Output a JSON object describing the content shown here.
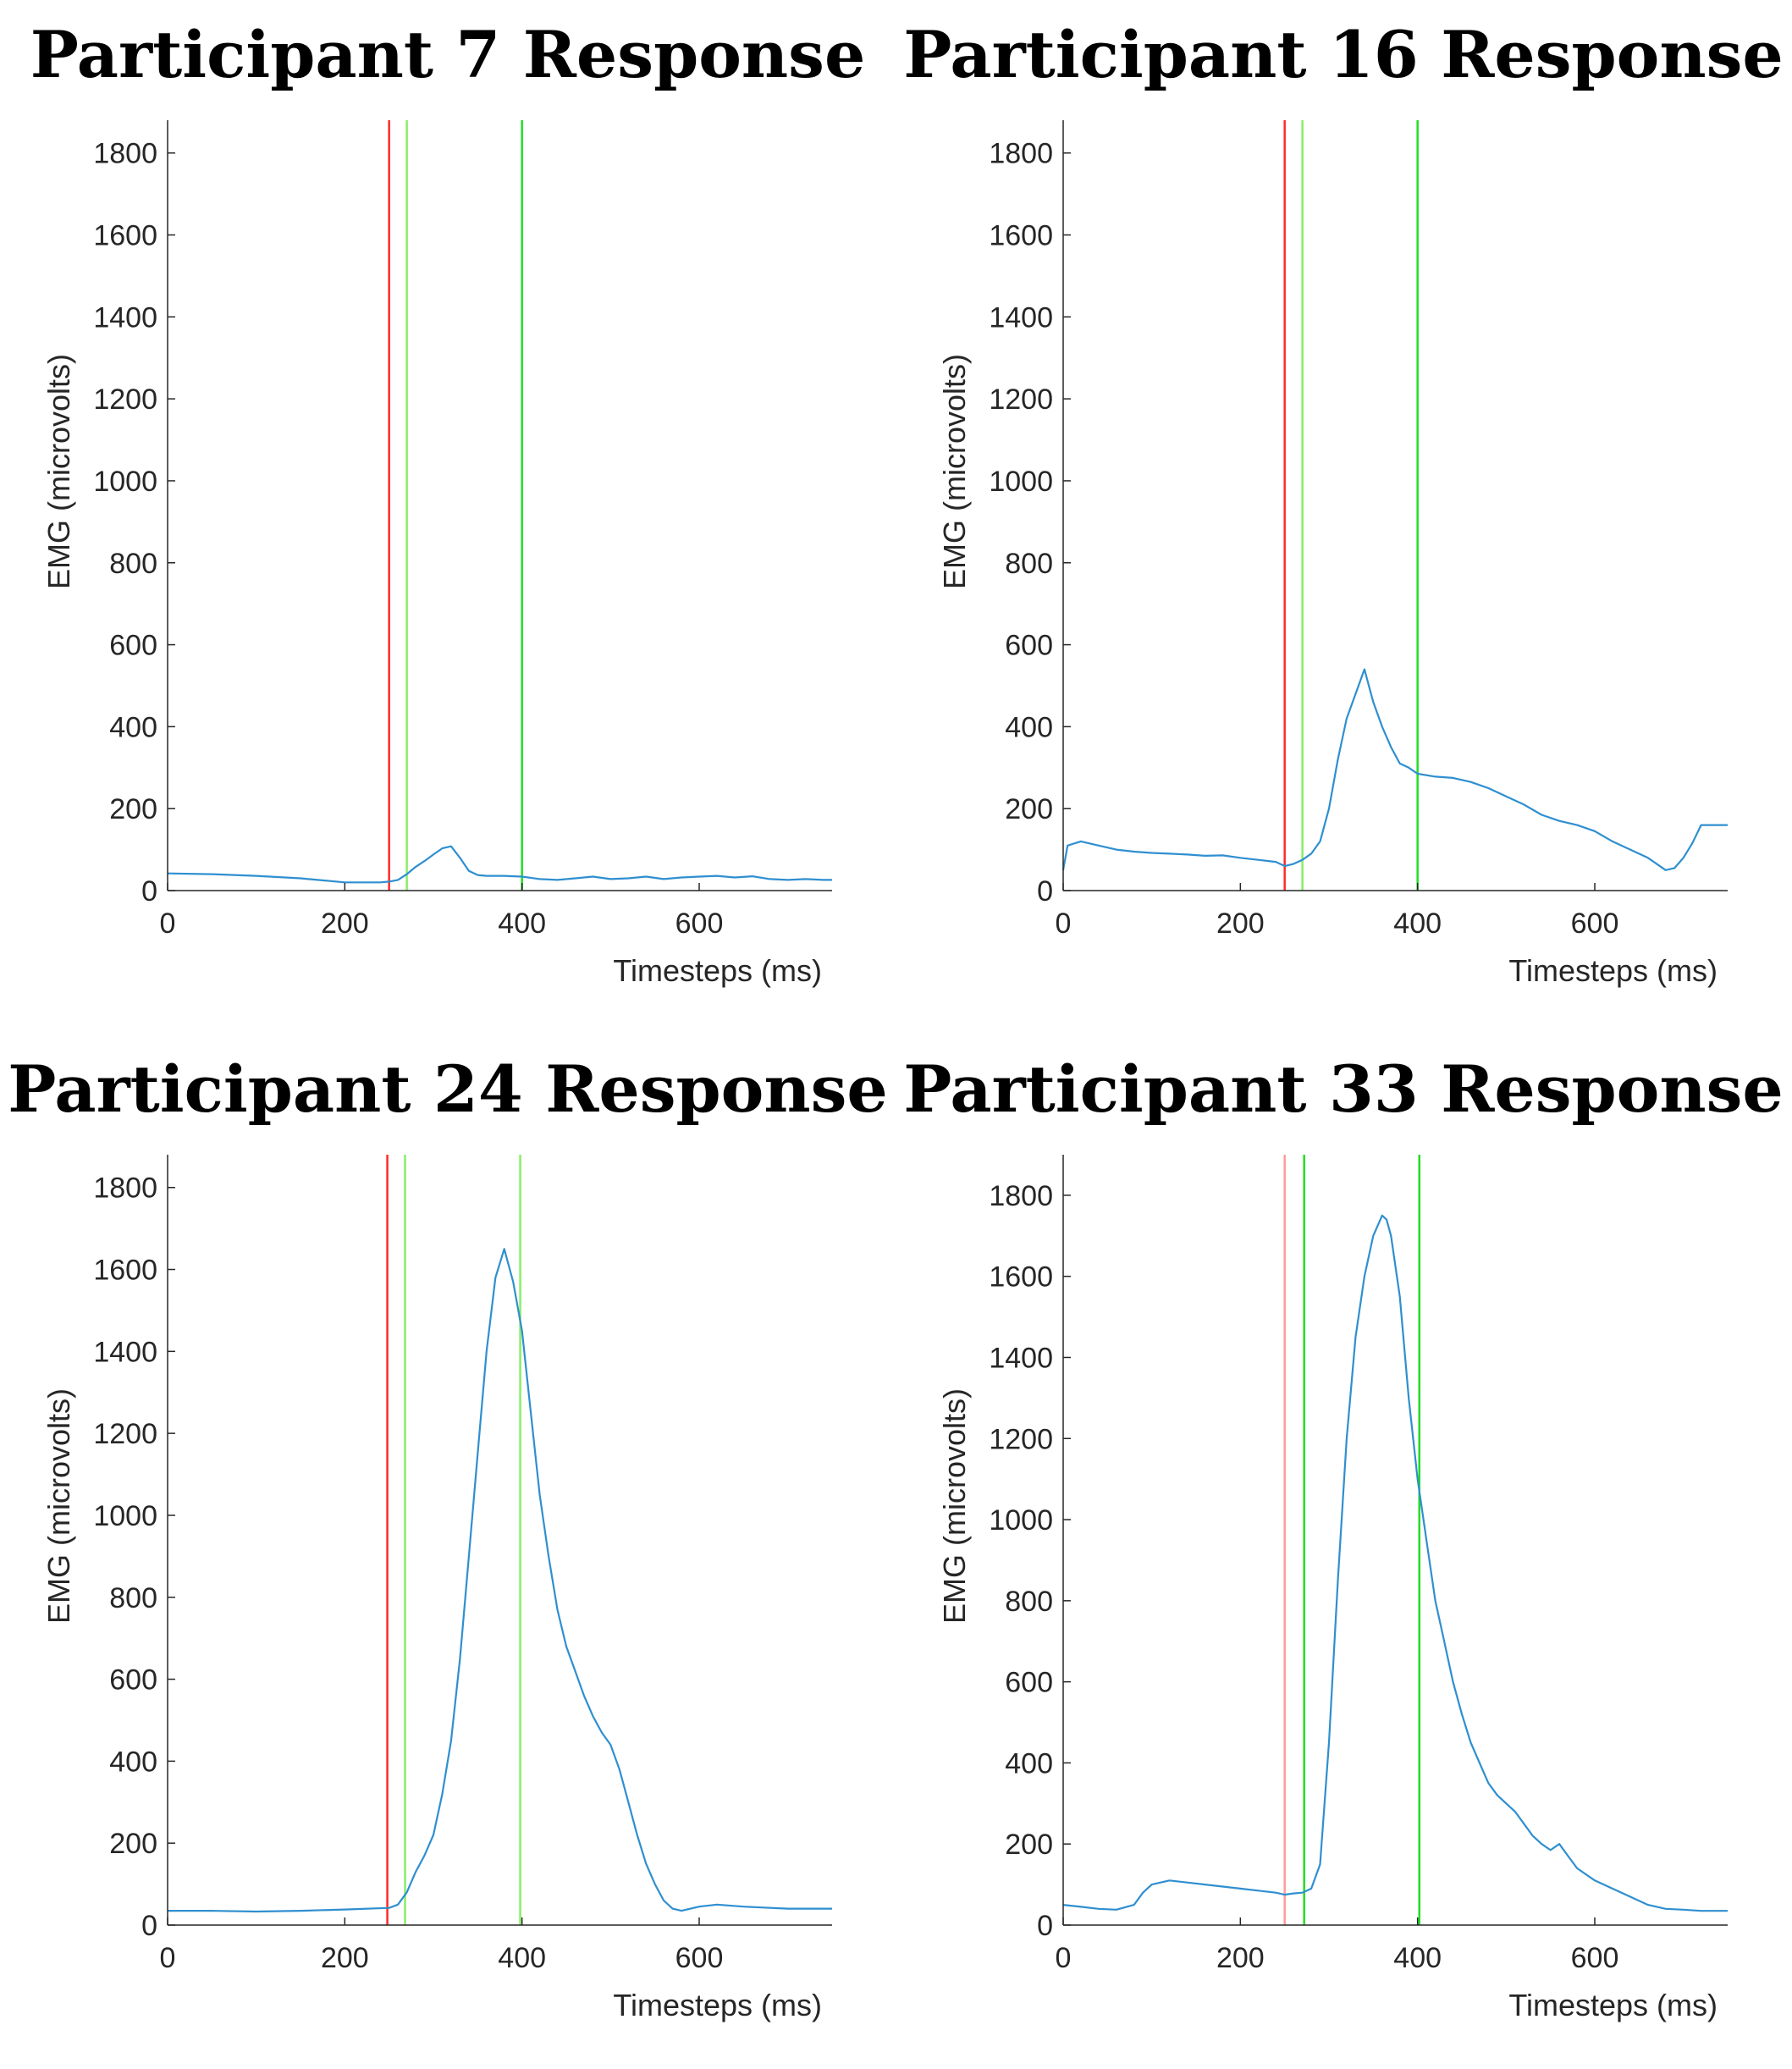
{
  "chart_data": [
    {
      "type": "line",
      "title": "Participant 7 Response",
      "xlabel": "Timesteps (ms)",
      "ylabel": "EMG (microvolts)",
      "xlim": [
        0,
        750
      ],
      "ylim": [
        0,
        1880
      ],
      "xticks": [
        0,
        200,
        400,
        600
      ],
      "yticks": [
        0,
        200,
        400,
        600,
        800,
        1000,
        1200,
        1400,
        1600,
        1800
      ],
      "markers": [
        {
          "x": 250,
          "color": "#ff2a2a"
        },
        {
          "x": 270,
          "color": "#88ee66"
        },
        {
          "x": 400,
          "color": "#22dd22"
        }
      ],
      "series": [
        {
          "name": "EMG",
          "color": "#2f8fd0",
          "x": [
            0,
            50,
            100,
            150,
            200,
            240,
            250,
            260,
            270,
            280,
            290,
            300,
            310,
            320,
            330,
            340,
            350,
            360,
            380,
            400,
            420,
            440,
            460,
            480,
            500,
            520,
            540,
            560,
            580,
            600,
            620,
            640,
            660,
            680,
            700,
            720,
            740,
            750
          ],
          "values": [
            42,
            40,
            36,
            30,
            20,
            20,
            22,
            26,
            40,
            58,
            72,
            88,
            103,
            108,
            80,
            48,
            38,
            36,
            36,
            34,
            28,
            26,
            30,
            34,
            28,
            30,
            34,
            28,
            32,
            34,
            36,
            32,
            35,
            28,
            26,
            28,
            26,
            26
          ]
        }
      ]
    },
    {
      "type": "line",
      "title": "Participant 16 Response",
      "xlabel": "Timesteps (ms)",
      "ylabel": "EMG (microvolts)",
      "xlim": [
        0,
        750
      ],
      "ylim": [
        0,
        1880
      ],
      "xticks": [
        0,
        200,
        400,
        600
      ],
      "yticks": [
        0,
        200,
        400,
        600,
        800,
        1000,
        1200,
        1400,
        1600,
        1800
      ],
      "markers": [
        {
          "x": 250,
          "color": "#ff2a2a"
        },
        {
          "x": 270,
          "color": "#88ee66"
        },
        {
          "x": 400,
          "color": "#22dd22"
        }
      ],
      "series": [
        {
          "name": "EMG",
          "color": "#2f8fd0",
          "x": [
            0,
            5,
            20,
            40,
            60,
            80,
            100,
            120,
            140,
            160,
            180,
            200,
            220,
            240,
            250,
            260,
            270,
            280,
            290,
            300,
            310,
            320,
            330,
            340,
            350,
            360,
            370,
            380,
            390,
            400,
            420,
            440,
            460,
            480,
            500,
            520,
            540,
            560,
            580,
            600,
            620,
            640,
            660,
            680,
            690,
            700,
            710,
            720,
            740,
            750
          ],
          "values": [
            50,
            110,
            120,
            110,
            100,
            95,
            92,
            90,
            88,
            85,
            86,
            80,
            75,
            70,
            60,
            65,
            75,
            90,
            120,
            200,
            320,
            420,
            480,
            540,
            460,
            400,
            350,
            310,
            300,
            285,
            278,
            275,
            265,
            250,
            230,
            210,
            185,
            170,
            160,
            145,
            120,
            100,
            80,
            50,
            55,
            80,
            115,
            160,
            160,
            160
          ]
        }
      ]
    },
    {
      "type": "line",
      "title": "Participant 24 Response",
      "xlabel": "Timesteps (ms)",
      "ylabel": "EMG (microvolts)",
      "xlim": [
        0,
        750
      ],
      "ylim": [
        0,
        1880
      ],
      "xticks": [
        0,
        200,
        400,
        600
      ],
      "yticks": [
        0,
        200,
        400,
        600,
        800,
        1000,
        1200,
        1400,
        1600,
        1800
      ],
      "markers": [
        {
          "x": 248,
          "color": "#ff2a2a"
        },
        {
          "x": 268,
          "color": "#88ee66"
        },
        {
          "x": 398,
          "color": "#88ee66"
        }
      ],
      "series": [
        {
          "name": "EMG",
          "color": "#2f8fd0",
          "x": [
            0,
            50,
            100,
            150,
            200,
            250,
            260,
            270,
            280,
            290,
            300,
            310,
            320,
            330,
            340,
            350,
            360,
            370,
            380,
            390,
            400,
            410,
            420,
            430,
            440,
            450,
            460,
            470,
            480,
            490,
            500,
            510,
            520,
            530,
            540,
            550,
            560,
            570,
            580,
            600,
            620,
            650,
            700,
            750
          ],
          "values": [
            35,
            35,
            33,
            35,
            38,
            42,
            50,
            80,
            130,
            170,
            220,
            320,
            450,
            650,
            900,
            1150,
            1400,
            1580,
            1650,
            1570,
            1450,
            1250,
            1050,
            900,
            770,
            680,
            620,
            560,
            510,
            470,
            440,
            380,
            300,
            220,
            150,
            100,
            60,
            40,
            35,
            45,
            50,
            45,
            40,
            40
          ]
        }
      ]
    },
    {
      "type": "line",
      "title": "Participant 33 Response",
      "xlabel": "Timesteps (ms)",
      "ylabel": "EMG (microvolts)",
      "xlim": [
        0,
        750
      ],
      "ylim": [
        0,
        1900
      ],
      "xticks": [
        0,
        200,
        400,
        600
      ],
      "yticks": [
        0,
        200,
        400,
        600,
        800,
        1000,
        1200,
        1400,
        1600,
        1800
      ],
      "markers": [
        {
          "x": 250,
          "color": "#ff9a9a"
        },
        {
          "x": 272,
          "color": "#22dd22"
        },
        {
          "x": 402,
          "color": "#22dd22"
        }
      ],
      "series": [
        {
          "name": "EMG",
          "color": "#2f8fd0",
          "x": [
            0,
            20,
            40,
            60,
            80,
            90,
            100,
            120,
            140,
            160,
            180,
            200,
            220,
            240,
            250,
            260,
            270,
            280,
            290,
            300,
            310,
            320,
            330,
            340,
            350,
            360,
            365,
            370,
            380,
            390,
            400,
            410,
            420,
            430,
            440,
            450,
            460,
            470,
            480,
            490,
            500,
            510,
            520,
            530,
            540,
            550,
            560,
            570,
            580,
            600,
            620,
            640,
            660,
            680,
            700,
            720,
            750
          ],
          "values": [
            50,
            45,
            40,
            38,
            50,
            80,
            100,
            110,
            105,
            100,
            95,
            90,
            85,
            80,
            75,
            78,
            80,
            90,
            150,
            450,
            850,
            1200,
            1450,
            1600,
            1700,
            1750,
            1740,
            1700,
            1550,
            1300,
            1100,
            950,
            800,
            700,
            600,
            520,
            450,
            400,
            350,
            320,
            300,
            280,
            250,
            220,
            200,
            185,
            200,
            170,
            140,
            110,
            90,
            70,
            50,
            40,
            38,
            35,
            35
          ]
        }
      ]
    }
  ]
}
